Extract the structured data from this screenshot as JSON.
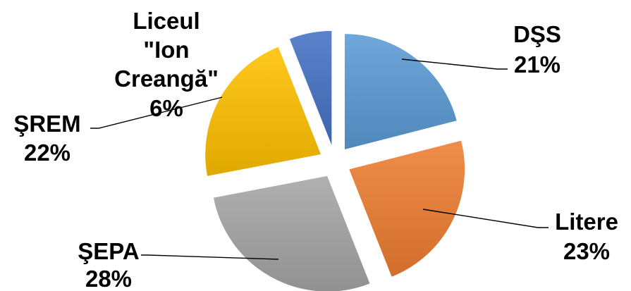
{
  "chart_data": {
    "type": "pie",
    "exploded": true,
    "slices": [
      {
        "name": "DŞS",
        "value": 21,
        "label": "21%",
        "color": "#5b9bd5"
      },
      {
        "name": "Litere",
        "value": 23,
        "label": "23%",
        "color": "#ed7d31"
      },
      {
        "name": "ŞEPA",
        "value": 28,
        "label": "28%",
        "color": "#a5a5a5"
      },
      {
        "name": "ŞREM",
        "value": 22,
        "label": "22%",
        "color": "#ffc000"
      },
      {
        "name": "Liceul \"Ion Creangă\"",
        "name_lines": [
          "Liceul",
          "\"Ion",
          "Creangă\""
        ],
        "value": 6,
        "label": "6%",
        "color": "#4472c4"
      }
    ]
  }
}
